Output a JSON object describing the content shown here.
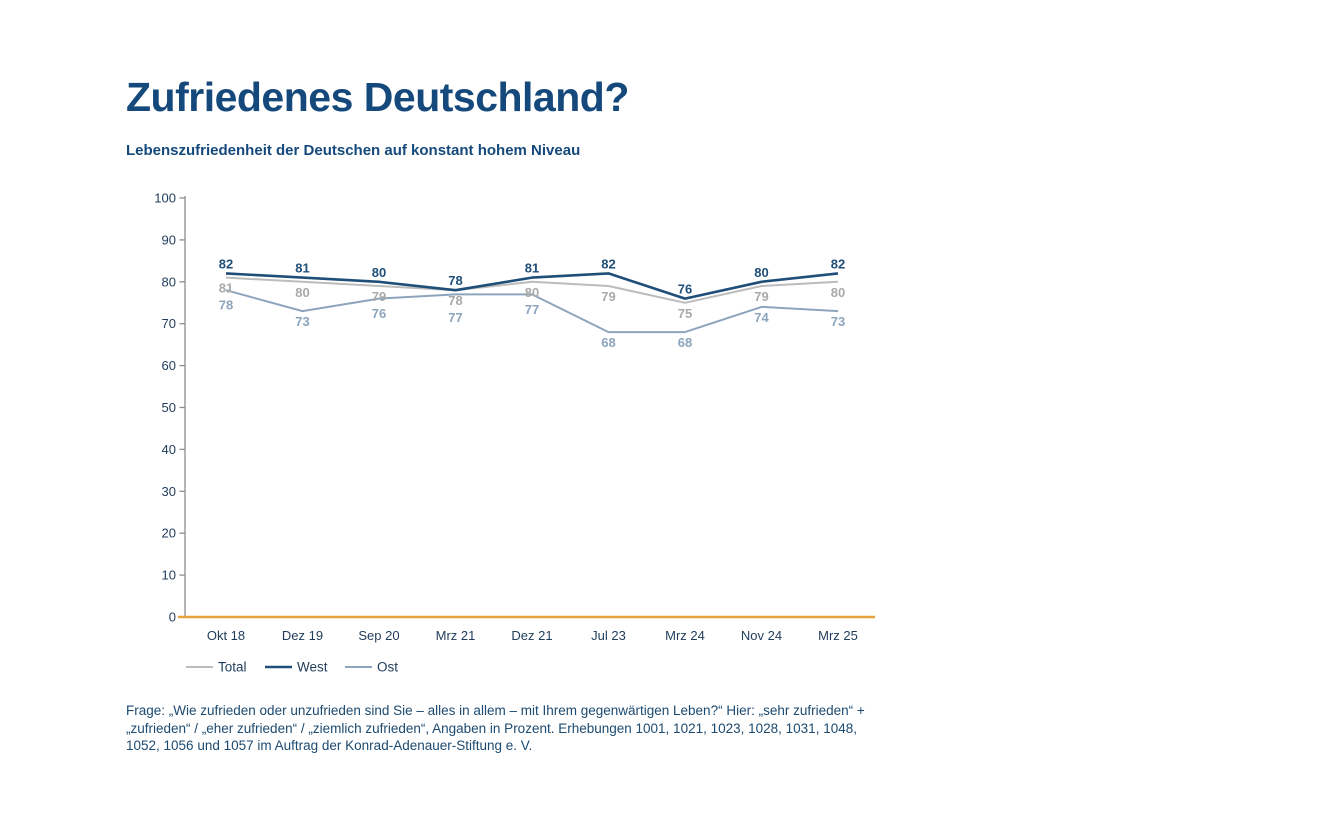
{
  "page": {
    "title": "Zufriedenes Deutschland?",
    "subtitle": "Lebenszufriedenheit der Deutschen auf konstant hohem Niveau",
    "footnote": [
      "Frage: „Wie zufrieden oder unzufrieden sind Sie – alles in allem – mit Ihrem gegenwärtigen Leben?“ Hier: „sehr zufrieden“ +",
      "„zufrieden“ / „eher zufrieden“ / „ziemlich zufrieden“, Angaben in Prozent. Erhebungen 1001, 1021, 1023, 1028, 1031, 1048,",
      "1052, 1056 und 1057 im Auftrag der Konrad-Adenauer-Stiftung e. V."
    ]
  },
  "chart_data": {
    "type": "line",
    "title": "Zufriedenes Deutschland?",
    "subtitle": "Lebenszufriedenheit der Deutschen auf konstant hohem Niveau",
    "categories": [
      "Okt 18",
      "Dez 19",
      "Sep 20",
      "Mrz 21",
      "Dez 21",
      "Jul 23",
      "Mrz 24",
      "Nov 24",
      "Mrz 25"
    ],
    "series": [
      {
        "name": "Total",
        "color": "#bcbcbc",
        "label_color": "#a9a9a9",
        "width": 2,
        "values": [
          81,
          80,
          79,
          78,
          80,
          79,
          75,
          79,
          80
        ]
      },
      {
        "name": "West",
        "color": "#1f4e79",
        "label_color": "#1f4e79",
        "width": 2.6,
        "values": [
          82,
          81,
          80,
          78,
          81,
          82,
          76,
          80,
          82
        ]
      },
      {
        "name": "Ost",
        "color": "#8da4bd",
        "label_color": "#8da4bd",
        "width": 2,
        "values": [
          78,
          73,
          76,
          77,
          77,
          68,
          68,
          74,
          73
        ]
      }
    ],
    "ylim": [
      0,
      100
    ],
    "yticks": [
      0,
      10,
      20,
      30,
      40,
      50,
      60,
      70,
      80,
      90,
      100
    ],
    "grid": false,
    "legend_position": "bottom",
    "legend_order": [
      "Total",
      "West",
      "Ost"
    ],
    "axis_color": "#8c8c8c",
    "axis_text_color": "#1f3c5a",
    "baseline_color": "#e6a23c",
    "units": "Prozent"
  }
}
